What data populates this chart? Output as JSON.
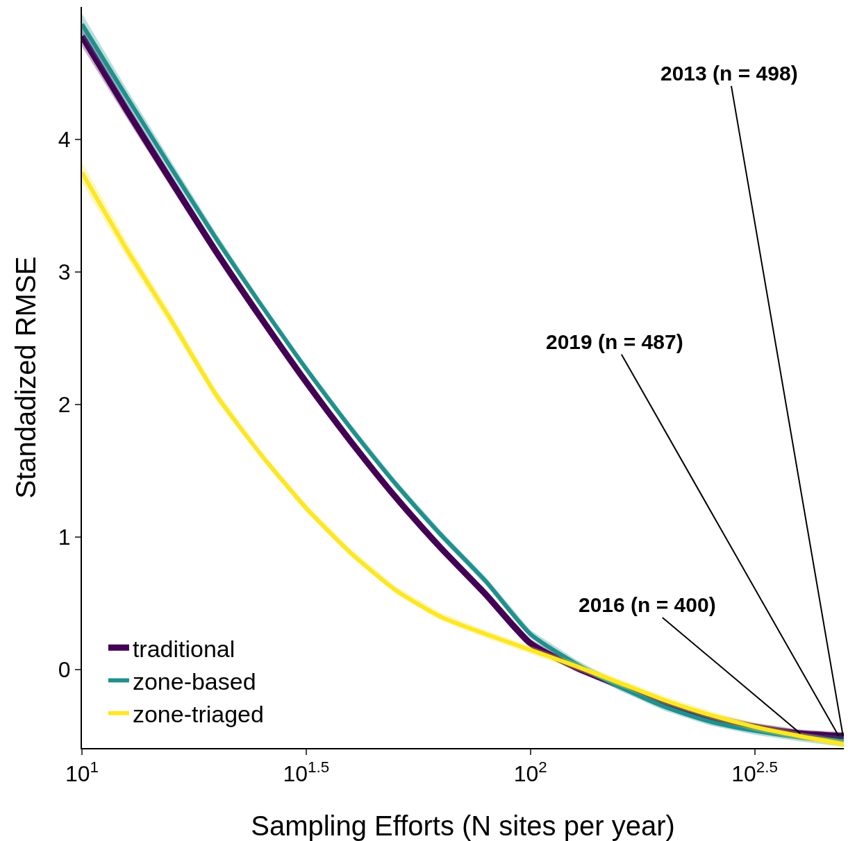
{
  "chart_data": {
    "type": "line",
    "xlabel": "Sampling Efforts (N sites per year)",
    "ylabel": "Standadized RMSE",
    "log": "x",
    "x": [
      10,
      12.59,
      15.85,
      19.95,
      25.12,
      31.62,
      39.81,
      50.12,
      63.1,
      79.43,
      100,
      125.9,
      158.5,
      199.5,
      251.2,
      316.2,
      398.1,
      500
    ],
    "series": [
      {
        "name": "traditional",
        "color": "#440154",
        "values": [
          4.78,
          4.22,
          3.68,
          3.15,
          2.65,
          2.17,
          1.72,
          1.3,
          0.92,
          0.57,
          0.2,
          0.02,
          -0.12,
          -0.26,
          -0.36,
          -0.43,
          -0.48,
          -0.5
        ],
        "lower": [
          4.7,
          4.16,
          3.63,
          3.11,
          2.62,
          2.14,
          1.69,
          1.27,
          0.89,
          0.54,
          0.17,
          -0.01,
          -0.15,
          -0.29,
          -0.39,
          -0.46,
          -0.51,
          -0.53
        ],
        "upper": [
          4.86,
          4.28,
          3.73,
          3.19,
          2.68,
          2.2,
          1.75,
          1.33,
          0.95,
          0.6,
          0.23,
          0.05,
          -0.09,
          -0.23,
          -0.33,
          -0.4,
          -0.45,
          -0.47
        ]
      },
      {
        "name": "zone-based",
        "color": "#21908c",
        "values": [
          4.87,
          4.32,
          3.78,
          3.25,
          2.75,
          2.27,
          1.82,
          1.4,
          1.02,
          0.67,
          0.27,
          0.05,
          -0.13,
          -0.28,
          -0.39,
          -0.46,
          -0.51,
          -0.54
        ],
        "lower": [
          4.79,
          4.26,
          3.73,
          3.21,
          2.72,
          2.24,
          1.79,
          1.37,
          0.99,
          0.64,
          0.24,
          0.02,
          -0.16,
          -0.31,
          -0.42,
          -0.49,
          -0.54,
          -0.58
        ],
        "upper": [
          4.95,
          4.38,
          3.83,
          3.29,
          2.78,
          2.3,
          1.85,
          1.43,
          1.05,
          0.7,
          0.3,
          0.08,
          -0.1,
          -0.25,
          -0.36,
          -0.43,
          -0.48,
          -0.5
        ]
      },
      {
        "name": "zone-triaged",
        "color": "#fde725",
        "values": [
          3.75,
          3.17,
          2.63,
          2.07,
          1.62,
          1.22,
          0.88,
          0.6,
          0.4,
          0.27,
          0.15,
          0.03,
          -0.1,
          -0.23,
          -0.34,
          -0.43,
          -0.5,
          -0.56
        ],
        "lower": [
          3.67,
          3.11,
          2.58,
          2.03,
          1.59,
          1.19,
          0.85,
          0.57,
          0.37,
          0.24,
          0.12,
          0,
          -0.13,
          -0.26,
          -0.37,
          -0.46,
          -0.53,
          -0.59
        ],
        "upper": [
          3.83,
          3.23,
          2.68,
          2.11,
          1.65,
          1.25,
          0.91,
          0.63,
          0.43,
          0.3,
          0.18,
          0.06,
          -0.07,
          -0.2,
          -0.31,
          -0.4,
          -0.47,
          -0.53
        ]
      }
    ],
    "xlim": [
      10,
      500
    ],
    "xticks": [
      {
        "value": 10,
        "label": "10$^{1}$"
      },
      {
        "value": 31.62,
        "label": "10$^{1.5}$"
      },
      {
        "value": 100,
        "label": "10$^{2}$"
      },
      {
        "value": 316.2,
        "label": "10$^{2.5}$"
      }
    ],
    "ylim": [
      -0.59,
      5.0
    ],
    "yticks": [
      0,
      1,
      2,
      3,
      4
    ],
    "grid": false,
    "legend": "bottom left",
    "line_style": "solid",
    "marker": "none",
    "annotations": [
      {
        "text": "2013 (n = 498)",
        "x": 498,
        "y": -0.5
      },
      {
        "text": "2019 (n = 487)",
        "x": 487,
        "y": -0.5
      },
      {
        "text": "2016 (n = 400)",
        "x": 400,
        "y": -0.48
      }
    ]
  }
}
